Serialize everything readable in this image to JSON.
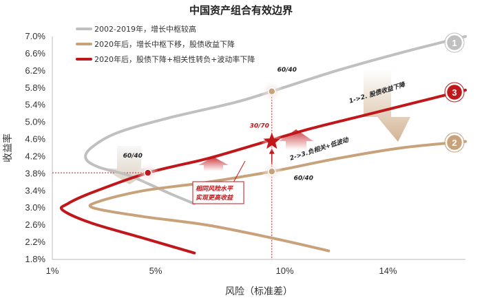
{
  "chart_data": {
    "type": "line",
    "title": "中国资产组合有效边界",
    "xlabel": "风险（标准差）",
    "ylabel": "收益率",
    "xlim": [
      1,
      17
    ],
    "ylim": [
      1.8,
      7.0
    ],
    "x_ticks": [
      1,
      5,
      10,
      14
    ],
    "x_tick_labels": [
      "1%",
      "5%",
      "10%",
      "14%"
    ],
    "y_ticks": [
      1.8,
      2.2,
      2.6,
      3.0,
      3.4,
      3.8,
      4.2,
      4.6,
      5.0,
      5.4,
      5.8,
      6.2,
      6.6,
      7.0
    ],
    "y_tick_labels": [
      "1.8%",
      "2.2%",
      "2.6%",
      "3.0%",
      "3.4%",
      "3.8%",
      "4.2%",
      "4.6%",
      "5.0%",
      "5.4%",
      "5.8%",
      "6.2%",
      "6.6%",
      "7.0%"
    ],
    "legend_position": "top-left",
    "series": [
      {
        "name": "2002-2019年，增长中枢较高",
        "color": "#c0c0c0",
        "badge": "1",
        "points": [
          [
            6.5,
            3.1
          ],
          [
            5.5,
            3.35
          ],
          [
            4.0,
            3.75
          ],
          [
            2.8,
            3.95
          ],
          [
            2.3,
            4.15
          ],
          [
            2.5,
            4.4
          ],
          [
            3.5,
            4.75
          ],
          [
            5.5,
            5.1
          ],
          [
            8.0,
            5.45
          ],
          [
            9.5,
            5.72
          ],
          [
            12.0,
            6.2
          ],
          [
            14.5,
            6.62
          ],
          [
            17.0,
            7.0
          ]
        ]
      },
      {
        "name": "2020年后，增长中枢下移，股债收益下降",
        "color": "#c8a27a",
        "badge": "2",
        "points": [
          [
            11.7,
            2.0
          ],
          [
            9.5,
            2.3
          ],
          [
            7.0,
            2.6
          ],
          [
            4.5,
            2.8
          ],
          [
            2.6,
            3.0
          ],
          [
            2.8,
            3.15
          ],
          [
            4.5,
            3.4
          ],
          [
            7.0,
            3.6
          ],
          [
            9.5,
            3.85
          ],
          [
            12.0,
            4.15
          ],
          [
            14.5,
            4.4
          ],
          [
            17.0,
            4.55
          ]
        ]
      },
      {
        "name": "2020年后，股债下降+相关性转负+波动率下降",
        "color": "#c0171b",
        "badge": "3",
        "points": [
          [
            6.5,
            1.95
          ],
          [
            4.5,
            2.3
          ],
          [
            2.5,
            2.65
          ],
          [
            1.4,
            2.95
          ],
          [
            1.6,
            3.1
          ],
          [
            2.5,
            3.35
          ],
          [
            4.7,
            3.82
          ],
          [
            7.0,
            4.15
          ],
          [
            9.0,
            4.5
          ],
          [
            11.0,
            4.85
          ],
          [
            13.0,
            5.15
          ],
          [
            15.0,
            5.45
          ],
          [
            17.0,
            5.75
          ]
        ]
      }
    ],
    "markers": [
      {
        "label": "60/40",
        "x": 9.5,
        "y": 5.72,
        "color": "#c8a27a"
      },
      {
        "label": "60/40",
        "x": 9.5,
        "y": 3.85,
        "color": "#c8a27a"
      },
      {
        "label": "60/40",
        "x": 4.7,
        "y": 3.82,
        "color": "#c0171b"
      },
      {
        "label": "30/70",
        "x": 9.5,
        "y": 4.55,
        "color": "#c0171b",
        "shape": "star"
      }
    ],
    "annotations": {
      "arrow_1": "1->2. 股债收益下降",
      "arrow_2": "2->3.负相关+低波动",
      "callout": "相同风险水平实现更高收益"
    }
  }
}
